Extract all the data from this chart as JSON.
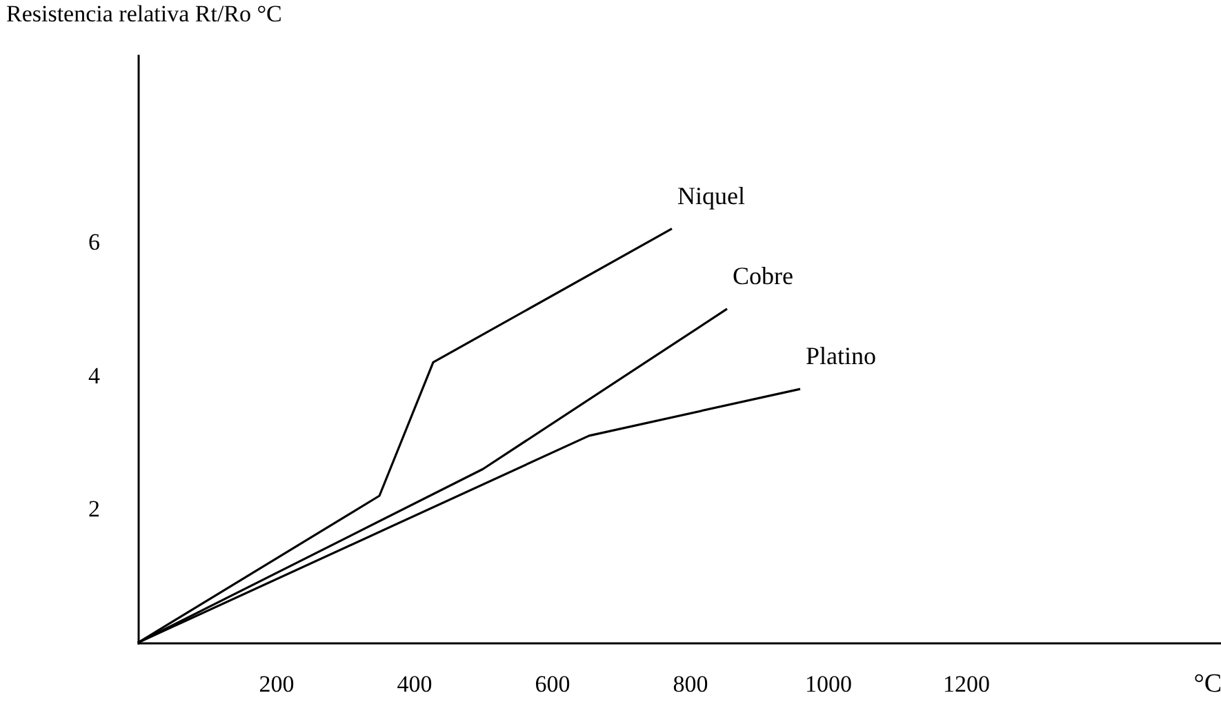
{
  "chart_data": {
    "type": "line",
    "ylabel": "Resistencia relativa Rt/Ro °C",
    "xlabel": "°C",
    "xlim": [
      0,
      1570
    ],
    "xticks": [
      200,
      400,
      600,
      800,
      1000,
      1200
    ],
    "ylim": [
      0,
      8.8
    ],
    "yticks": [
      2,
      4,
      6
    ],
    "grid": false,
    "legend": false,
    "marker": "none",
    "line_style": "solid",
    "series": [
      {
        "name": "Niquel",
        "color": "#000000",
        "x": [
          0,
          350,
          428,
          774
        ],
        "values": [
          0,
          2.2,
          4.2,
          6.2
        ]
      },
      {
        "name": "Cobre",
        "color": "#000000",
        "x": [
          0,
          500,
          854
        ],
        "values": [
          0,
          2.6,
          5.0
        ]
      },
      {
        "name": "Platino",
        "color": "#000000",
        "x": [
          0,
          654,
          960
        ],
        "values": [
          0,
          3.1,
          3.8
        ]
      }
    ]
  }
}
